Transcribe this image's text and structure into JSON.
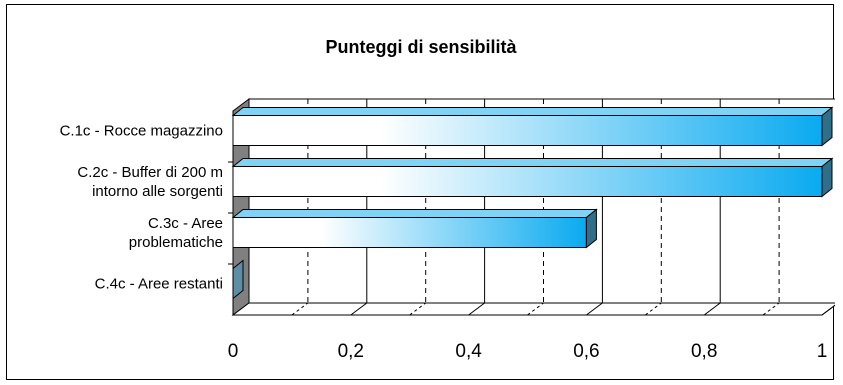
{
  "chart_data": {
    "type": "bar",
    "orientation": "horizontal",
    "title": "Punteggi di sensibilità",
    "categories": [
      [
        "C.1c - Rocce magazzino"
      ],
      [
        "C.2c - Buffer di 200 m",
        "intorno alle sorgenti"
      ],
      [
        "C.3c - Aree",
        "problematiche"
      ],
      [
        "C.4c - Aree restanti"
      ]
    ],
    "values": [
      1,
      1,
      0.6,
      0
    ],
    "xlim": [
      0,
      1
    ],
    "x_ticks": [
      "0",
      "0,2",
      "0,4",
      "0,6",
      "0,8",
      "1"
    ],
    "grid": "vertical, dashed minor",
    "legend": "none",
    "colors": {
      "bar_start": "#ffffff",
      "bar_end": "#0aaaf0",
      "bar_top": "#7fd3f5",
      "bar_side": "#2f6f8a"
    }
  }
}
